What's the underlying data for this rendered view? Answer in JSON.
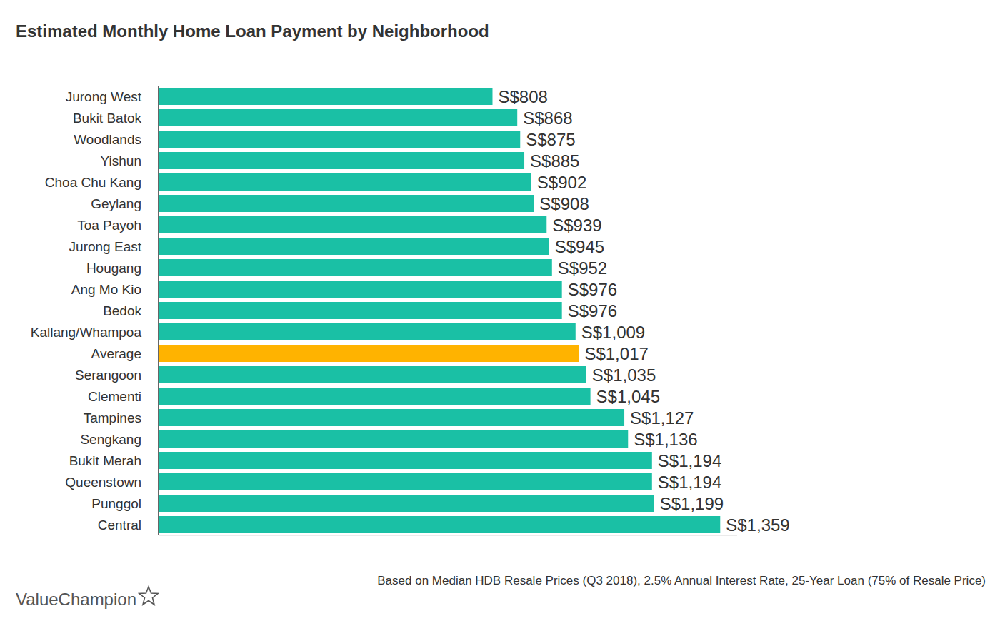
{
  "chart_data": {
    "type": "bar",
    "orientation": "horizontal",
    "title": "Estimated Monthly Home Loan Payment by Neighborhood",
    "categories": [
      "Jurong West",
      "Bukit Batok",
      "Woodlands",
      "Yishun",
      "Choa Chu Kang",
      "Geylang",
      "Toa Payoh",
      "Jurong East",
      "Hougang",
      "Ang Mo Kio",
      "Bedok",
      "Kallang/Whampoa",
      "Average",
      "Serangoon",
      "Clementi",
      "Tampines",
      "Sengkang",
      "Bukit Merah",
      "Queenstown",
      "Punggol",
      "Central"
    ],
    "values": [
      808,
      868,
      875,
      885,
      902,
      908,
      939,
      945,
      952,
      976,
      976,
      1009,
      1017,
      1035,
      1045,
      1127,
      1136,
      1194,
      1194,
      1199,
      1359
    ],
    "value_labels": [
      "S$808",
      "S$868",
      "S$875",
      "S$885",
      "S$902",
      "S$908",
      "S$939",
      "S$945",
      "S$952",
      "S$976",
      "S$976",
      "S$1,009",
      "S$1,017",
      "S$1,035",
      "S$1,045",
      "S$1,127",
      "S$1,136",
      "S$1,194",
      "S$1,194",
      "S$1,199",
      "S$1,359"
    ],
    "colors": [
      "#1ac0a5",
      "#1ac0a5",
      "#1ac0a5",
      "#1ac0a5",
      "#1ac0a5",
      "#1ac0a5",
      "#1ac0a5",
      "#1ac0a5",
      "#1ac0a5",
      "#1ac0a5",
      "#1ac0a5",
      "#1ac0a5",
      "#ffb300",
      "#1ac0a5",
      "#1ac0a5",
      "#1ac0a5",
      "#1ac0a5",
      "#1ac0a5",
      "#1ac0a5",
      "#1ac0a5",
      "#1ac0a5"
    ],
    "xlim": [
      0,
      1400
    ],
    "data_labels": true,
    "grid": false,
    "tick_labels": "y",
    "footnote": "Based on Median HDB Resale Prices (Q3 2018), 2.5% Annual Interest Rate, 25-Year Loan (75% of Resale Price)",
    "logo": "ValueChampion"
  }
}
